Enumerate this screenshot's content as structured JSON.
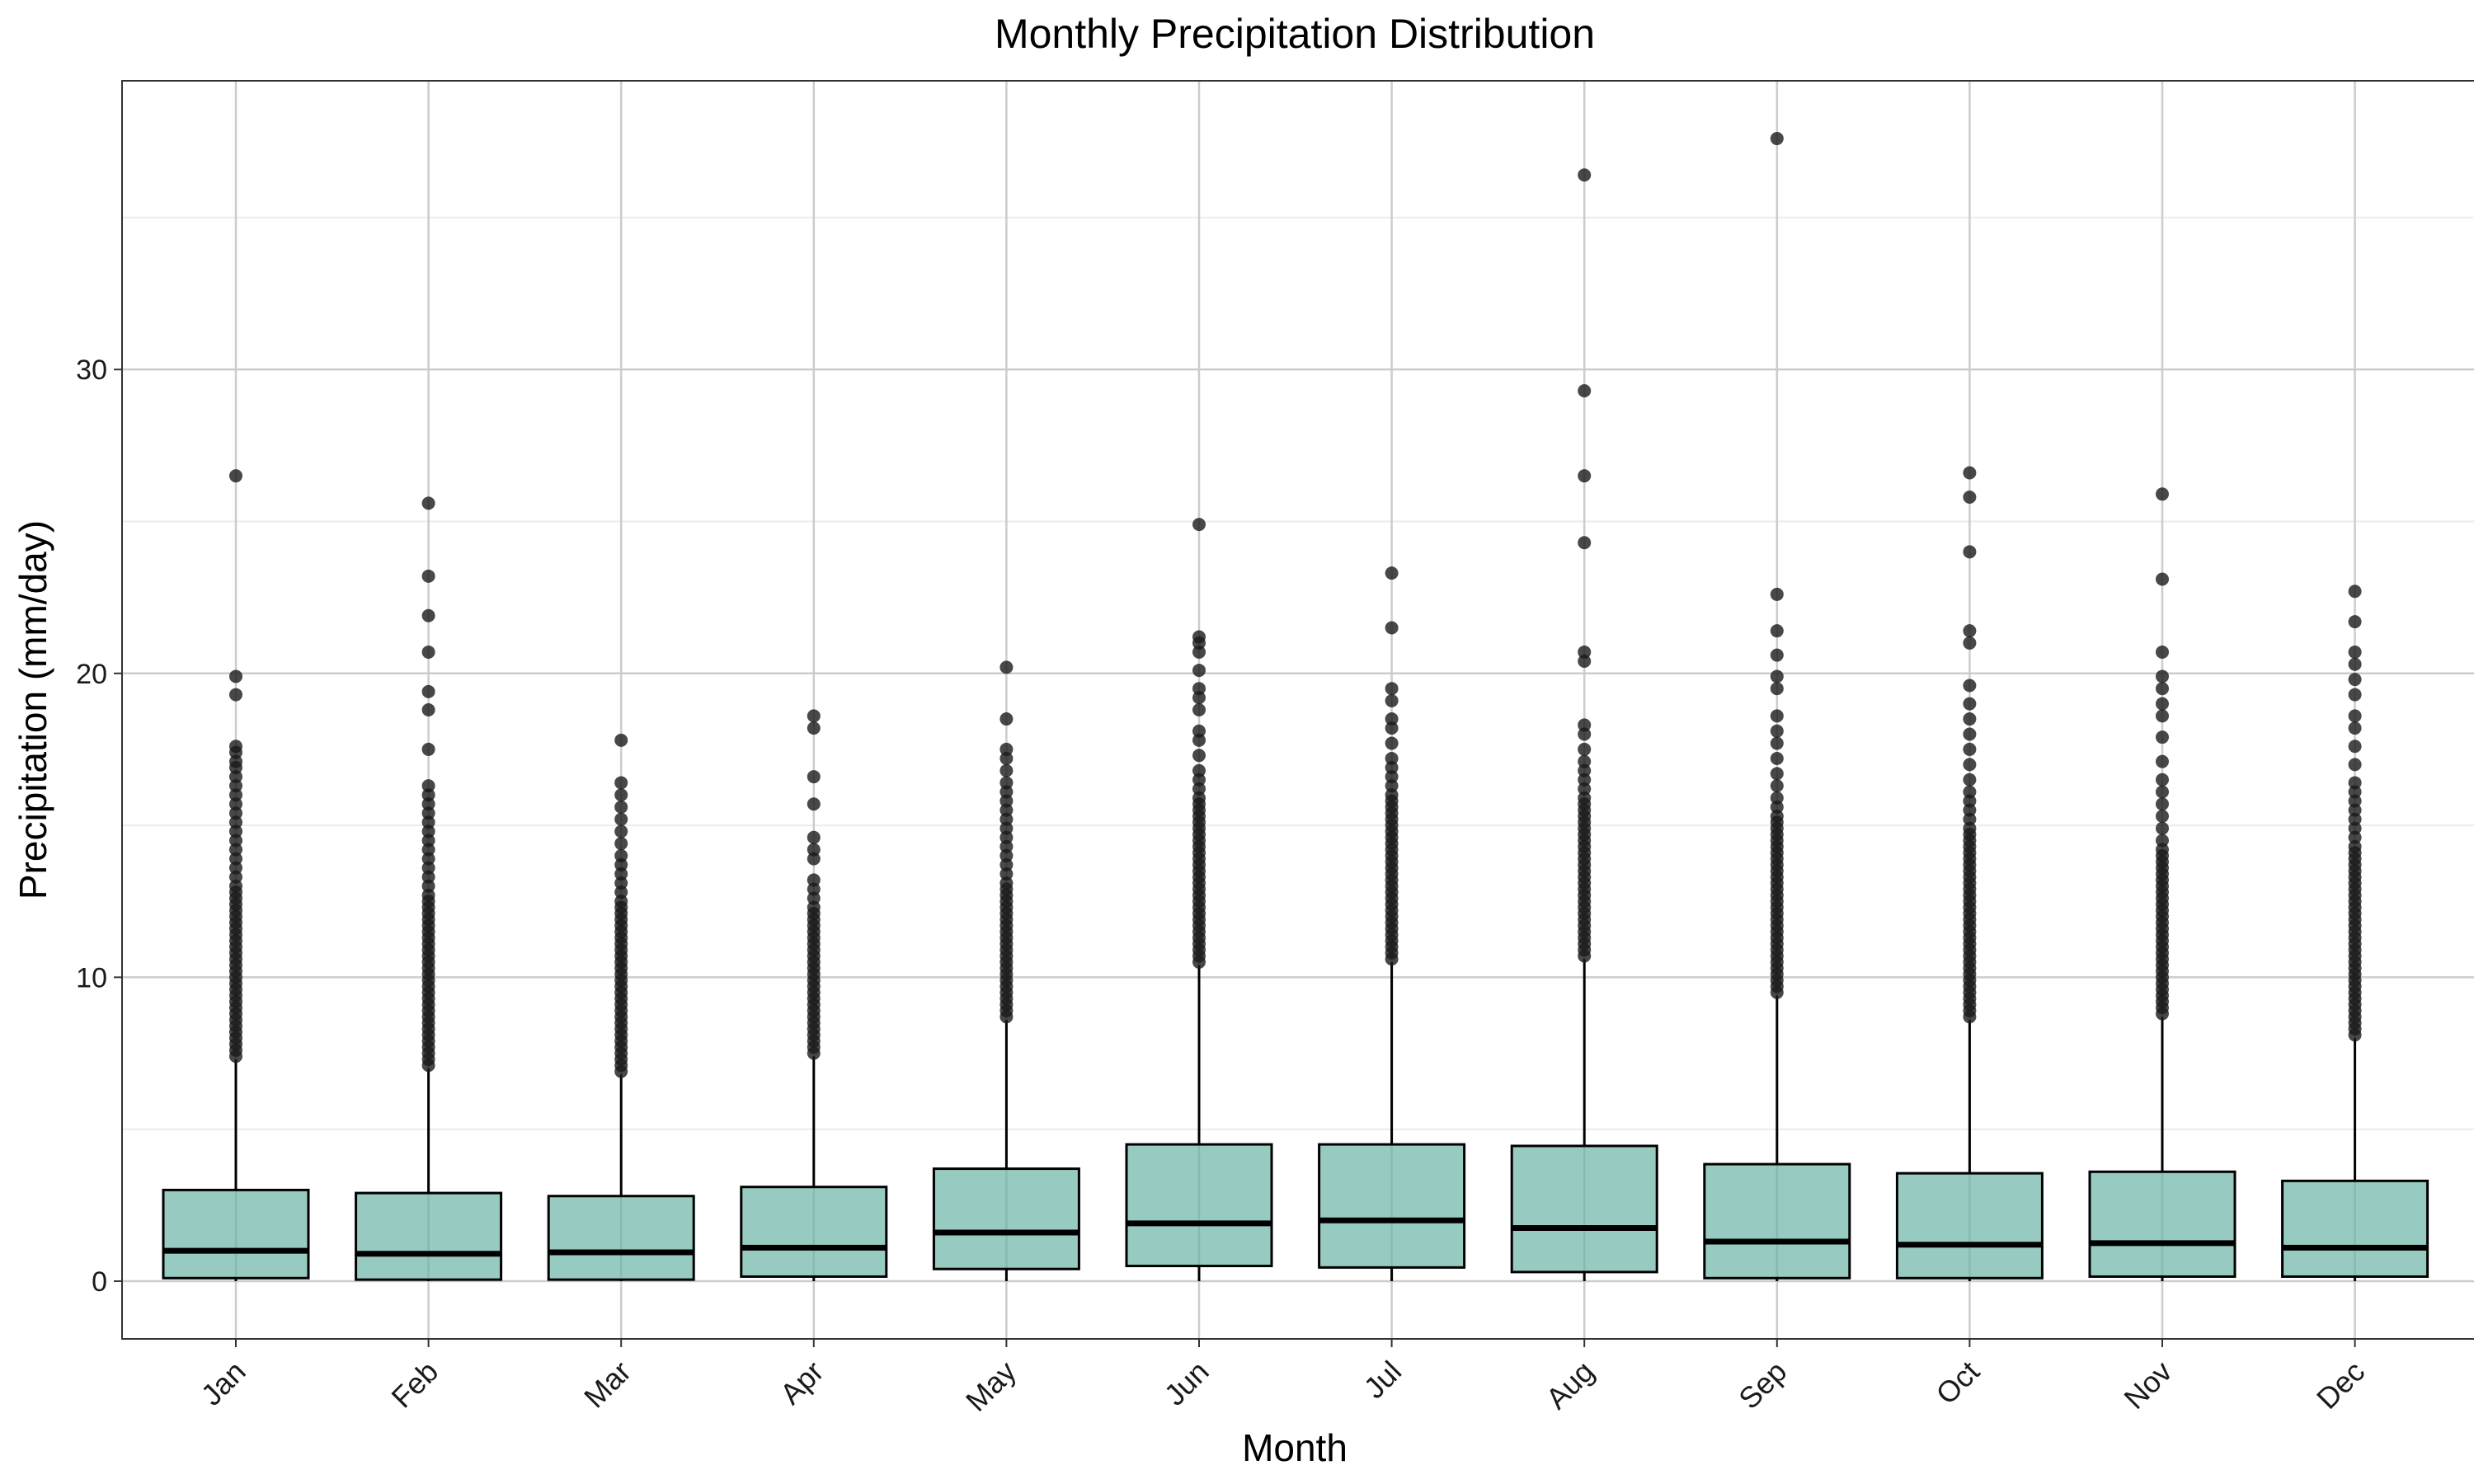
{
  "chart_data": {
    "type": "box",
    "title": "Monthly Precipitation Distribution",
    "xlabel": "Month",
    "ylabel": "Precipitation (mm/day)",
    "ylim": [
      -1.9,
      39.5
    ],
    "yticks": [
      0,
      10,
      20,
      30
    ],
    "grid": true,
    "legend": "none",
    "colors": {
      "box_fill": "#66b2a3",
      "box_fill_opacity": 0.68,
      "box_stroke": "#000000",
      "outlier": "#1a1a1a",
      "grid_major": "#cccccc",
      "grid_minor": "#ebebeb",
      "panel_border": "#333333"
    },
    "categories": [
      "Jan",
      "Feb",
      "Mar",
      "Apr",
      "May",
      "Jun",
      "Jul",
      "Aug",
      "Sep",
      "Oct",
      "Nov",
      "Dec"
    ],
    "boxes": [
      {
        "q1": 0.1,
        "median": 1.0,
        "q3": 3.0,
        "whisker_low": 0.0,
        "whisker_high": 7.3,
        "outliers": [
          7.4,
          7.6,
          7.8,
          8.0,
          8.2,
          8.4,
          8.6,
          8.8,
          9.0,
          9.2,
          9.4,
          9.6,
          9.8,
          10.0,
          10.2,
          10.4,
          10.6,
          10.8,
          11.0,
          11.2,
          11.4,
          11.6,
          11.8,
          12.0,
          12.2,
          12.4,
          12.6,
          12.8,
          13.0,
          13.3,
          13.6,
          13.9,
          14.2,
          14.5,
          14.8,
          15.1,
          15.4,
          15.7,
          16.0,
          16.3,
          16.6,
          16.9,
          17.1,
          17.4,
          17.6,
          19.3,
          19.9,
          26.5
        ]
      },
      {
        "q1": 0.05,
        "median": 0.9,
        "q3": 2.9,
        "whisker_low": 0.0,
        "whisker_high": 7.0,
        "outliers": [
          7.1,
          7.3,
          7.5,
          7.7,
          7.9,
          8.1,
          8.3,
          8.5,
          8.7,
          8.9,
          9.1,
          9.3,
          9.5,
          9.7,
          9.9,
          10.1,
          10.3,
          10.5,
          10.7,
          10.9,
          11.1,
          11.3,
          11.5,
          11.7,
          11.9,
          12.1,
          12.3,
          12.5,
          12.7,
          13.0,
          13.3,
          13.6,
          13.9,
          14.2,
          14.5,
          14.8,
          15.1,
          15.4,
          15.7,
          16.0,
          16.3,
          17.5,
          18.8,
          19.4,
          20.7,
          21.9,
          23.2,
          25.6
        ]
      },
      {
        "q1": 0.05,
        "median": 0.95,
        "q3": 2.8,
        "whisker_low": 0.0,
        "whisker_high": 6.8,
        "outliers": [
          6.9,
          7.1,
          7.3,
          7.5,
          7.7,
          7.9,
          8.1,
          8.3,
          8.5,
          8.7,
          8.9,
          9.1,
          9.3,
          9.5,
          9.7,
          9.9,
          10.1,
          10.3,
          10.5,
          10.7,
          10.9,
          11.1,
          11.3,
          11.5,
          11.7,
          11.9,
          12.1,
          12.3,
          12.5,
          12.8,
          13.1,
          13.4,
          13.7,
          14.0,
          14.4,
          14.8,
          15.2,
          15.6,
          16.0,
          16.4,
          17.8
        ]
      },
      {
        "q1": 0.15,
        "median": 1.1,
        "q3": 3.1,
        "whisker_low": 0.0,
        "whisker_high": 7.4,
        "outliers": [
          7.5,
          7.7,
          7.9,
          8.1,
          8.3,
          8.5,
          8.7,
          8.9,
          9.1,
          9.3,
          9.5,
          9.7,
          9.9,
          10.1,
          10.3,
          10.5,
          10.7,
          10.9,
          11.1,
          11.3,
          11.5,
          11.7,
          11.9,
          12.1,
          12.3,
          12.6,
          12.9,
          13.2,
          13.9,
          14.2,
          14.6,
          15.7,
          16.6,
          18.2,
          18.6
        ]
      },
      {
        "q1": 0.4,
        "median": 1.6,
        "q3": 3.7,
        "whisker_low": 0.0,
        "whisker_high": 8.6,
        "outliers": [
          8.7,
          8.9,
          9.1,
          9.3,
          9.5,
          9.7,
          9.9,
          10.1,
          10.3,
          10.5,
          10.7,
          10.9,
          11.1,
          11.3,
          11.5,
          11.7,
          11.9,
          12.1,
          12.3,
          12.5,
          12.7,
          12.9,
          13.1,
          13.4,
          13.7,
          14.0,
          14.3,
          14.6,
          14.9,
          15.2,
          15.5,
          15.8,
          16.1,
          16.4,
          16.8,
          17.2,
          17.5,
          18.5,
          20.2
        ]
      },
      {
        "q1": 0.5,
        "median": 1.9,
        "q3": 4.5,
        "whisker_low": 0.0,
        "whisker_high": 10.4,
        "outliers": [
          10.5,
          10.7,
          10.9,
          11.1,
          11.3,
          11.5,
          11.7,
          11.9,
          12.1,
          12.3,
          12.5,
          12.7,
          12.9,
          13.1,
          13.3,
          13.5,
          13.7,
          13.9,
          14.1,
          14.3,
          14.5,
          14.7,
          14.9,
          15.1,
          15.3,
          15.5,
          15.7,
          15.9,
          16.2,
          16.5,
          16.8,
          17.3,
          17.8,
          18.1,
          18.8,
          19.2,
          19.5,
          20.1,
          20.7,
          21.0,
          21.2,
          24.9
        ]
      },
      {
        "q1": 0.45,
        "median": 2.0,
        "q3": 4.5,
        "whisker_low": 0.0,
        "whisker_high": 10.5,
        "outliers": [
          10.6,
          10.8,
          11.0,
          11.2,
          11.4,
          11.6,
          11.8,
          12.0,
          12.2,
          12.4,
          12.6,
          12.8,
          13.0,
          13.2,
          13.4,
          13.6,
          13.8,
          14.0,
          14.2,
          14.4,
          14.6,
          14.8,
          15.0,
          15.2,
          15.4,
          15.6,
          15.8,
          16.0,
          16.3,
          16.6,
          16.9,
          17.2,
          17.7,
          18.2,
          18.5,
          19.1,
          19.5,
          21.5,
          23.3
        ]
      },
      {
        "q1": 0.3,
        "median": 1.75,
        "q3": 4.45,
        "whisker_low": 0.0,
        "whisker_high": 10.6,
        "outliers": [
          10.7,
          10.9,
          11.1,
          11.3,
          11.5,
          11.7,
          11.9,
          12.1,
          12.3,
          12.5,
          12.7,
          12.9,
          13.1,
          13.3,
          13.5,
          13.7,
          13.9,
          14.1,
          14.3,
          14.5,
          14.7,
          14.9,
          15.1,
          15.3,
          15.5,
          15.7,
          15.9,
          16.2,
          16.5,
          16.8,
          17.1,
          17.5,
          18.0,
          18.3,
          20.4,
          20.7,
          24.3,
          26.5,
          29.3,
          36.4
        ]
      },
      {
        "q1": 0.1,
        "median": 1.3,
        "q3": 3.85,
        "whisker_low": 0.0,
        "whisker_high": 9.4,
        "outliers": [
          9.5,
          9.7,
          9.9,
          10.1,
          10.3,
          10.5,
          10.7,
          10.9,
          11.1,
          11.3,
          11.5,
          11.7,
          11.9,
          12.1,
          12.3,
          12.5,
          12.7,
          12.9,
          13.1,
          13.3,
          13.5,
          13.7,
          13.9,
          14.1,
          14.3,
          14.5,
          14.7,
          14.9,
          15.1,
          15.3,
          15.6,
          15.9,
          16.3,
          16.7,
          17.2,
          17.7,
          18.1,
          18.6,
          19.5,
          19.9,
          20.6,
          21.4,
          22.6,
          37.6
        ]
      },
      {
        "q1": 0.1,
        "median": 1.2,
        "q3": 3.55,
        "whisker_low": 0.0,
        "whisker_high": 8.6,
        "outliers": [
          8.7,
          8.9,
          9.1,
          9.3,
          9.5,
          9.7,
          9.9,
          10.1,
          10.3,
          10.5,
          10.7,
          10.9,
          11.1,
          11.3,
          11.5,
          11.7,
          11.9,
          12.1,
          12.3,
          12.5,
          12.7,
          12.9,
          13.1,
          13.3,
          13.5,
          13.7,
          13.9,
          14.1,
          14.3,
          14.5,
          14.7,
          14.9,
          15.2,
          15.5,
          15.8,
          16.1,
          16.5,
          17.0,
          17.5,
          18.0,
          18.5,
          19.0,
          19.6,
          21.0,
          21.4,
          24.0,
          25.8,
          26.6
        ]
      },
      {
        "q1": 0.15,
        "median": 1.25,
        "q3": 3.6,
        "whisker_low": 0.0,
        "whisker_high": 8.7,
        "outliers": [
          8.8,
          9.0,
          9.2,
          9.4,
          9.6,
          9.8,
          10.0,
          10.2,
          10.4,
          10.6,
          10.8,
          11.0,
          11.2,
          11.4,
          11.6,
          11.8,
          12.0,
          12.2,
          12.4,
          12.6,
          12.8,
          13.0,
          13.2,
          13.4,
          13.6,
          13.8,
          14.0,
          14.2,
          14.5,
          14.9,
          15.3,
          15.7,
          16.1,
          16.5,
          17.1,
          17.9,
          18.6,
          19.0,
          19.5,
          19.9,
          20.7,
          23.1,
          25.9
        ]
      },
      {
        "q1": 0.15,
        "median": 1.1,
        "q3": 3.3,
        "whisker_low": 0.0,
        "whisker_high": 8.0,
        "outliers": [
          8.1,
          8.3,
          8.5,
          8.7,
          8.9,
          9.1,
          9.3,
          9.5,
          9.7,
          9.9,
          10.1,
          10.3,
          10.5,
          10.7,
          10.9,
          11.1,
          11.3,
          11.5,
          11.7,
          11.9,
          12.1,
          12.3,
          12.5,
          12.7,
          12.9,
          13.1,
          13.3,
          13.5,
          13.7,
          13.9,
          14.1,
          14.3,
          14.6,
          14.9,
          15.2,
          15.5,
          15.8,
          16.1,
          16.4,
          17.0,
          17.6,
          18.2,
          18.6,
          19.3,
          19.8,
          20.3,
          20.7,
          21.7,
          22.7
        ]
      }
    ]
  }
}
